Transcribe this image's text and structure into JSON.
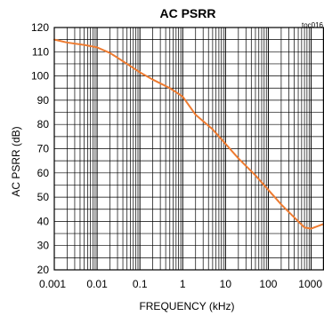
{
  "chart_data": {
    "type": "line",
    "title": "AC PSRR",
    "tag": "toc016",
    "xlabel": "FREQUENCY (kHz)",
    "ylabel": "AC PSRR (dB)",
    "x_scale": "log",
    "xlim": [
      0.001,
      2000
    ],
    "ylim": [
      20,
      120
    ],
    "grid": true,
    "x_ticks": [
      0.001,
      0.01,
      0.1,
      1,
      10,
      100,
      1000
    ],
    "x_tick_labels": [
      "0.001",
      "0.01",
      "0.1",
      "1",
      "10",
      "100",
      "1000"
    ],
    "y_ticks": [
      20,
      30,
      40,
      50,
      60,
      70,
      80,
      90,
      100,
      110,
      120
    ],
    "y_tick_labels": [
      "20",
      "30",
      "40",
      "50",
      "60",
      "70",
      "80",
      "90",
      "100",
      "110",
      "120"
    ],
    "line_color": "#ee7b30",
    "series": [
      {
        "x": [
          0.001,
          0.002,
          0.005,
          0.01,
          0.02,
          0.05,
          0.1,
          0.2,
          0.5,
          1,
          2,
          5,
          10,
          20,
          50,
          100,
          200,
          500,
          700,
          1000,
          2000
        ],
        "values": [
          115,
          113.8,
          112.8,
          111.8,
          109.5,
          105,
          101.5,
          98.5,
          95,
          91.5,
          84,
          78,
          72,
          66,
          59,
          53,
          47,
          40,
          37.5,
          37,
          39
        ]
      }
    ]
  }
}
